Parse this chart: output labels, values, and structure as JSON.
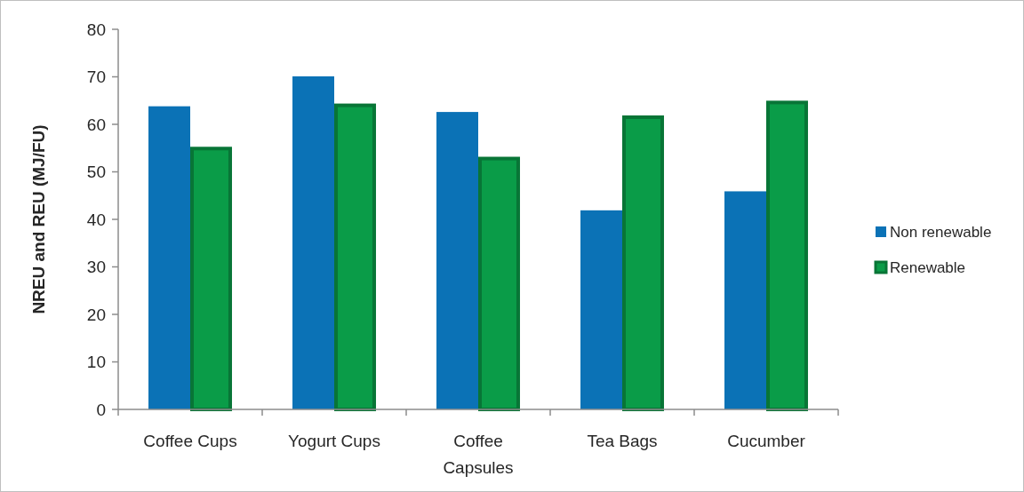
{
  "chart_data": {
    "type": "bar",
    "ylabel": "NREU and REU (MJ/FU)",
    "categories": [
      "Coffee Cups",
      "Yogurt Cups",
      "Coffee Capsules",
      "Tea Bags",
      "Cucumber"
    ],
    "series": [
      {
        "name": "Non renewable",
        "color": "#0b72b6",
        "values": [
          63.8,
          70.1,
          62.6,
          41.9,
          45.9
        ]
      },
      {
        "name": "Renewable",
        "color": "#0a9c48",
        "values": [
          54.9,
          64.0,
          52.8,
          61.5,
          64.6
        ]
      }
    ],
    "ylim": [
      0,
      80
    ],
    "yticks": [
      0,
      10,
      20,
      30,
      40,
      50,
      60,
      70,
      80
    ],
    "legend": "right",
    "grid": false
  }
}
